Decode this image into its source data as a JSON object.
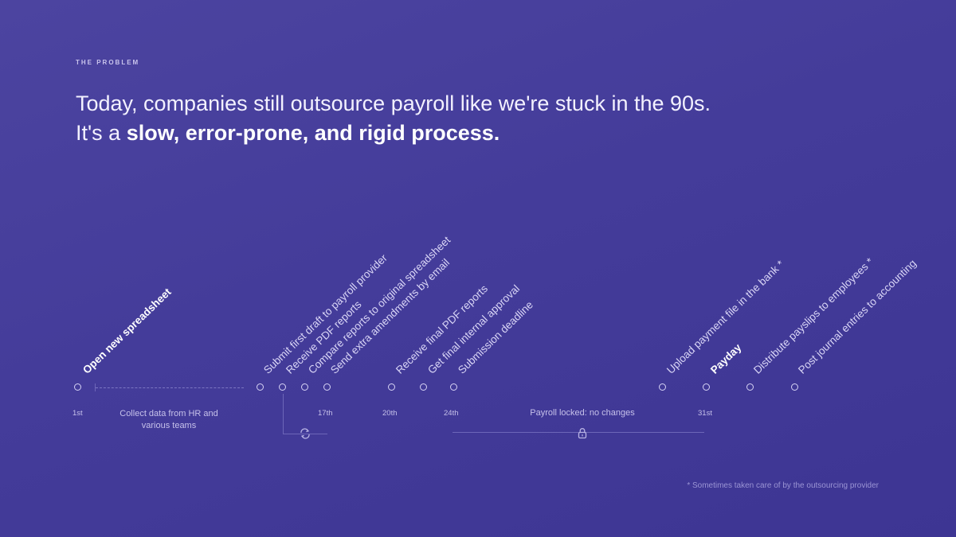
{
  "eyebrow": "THE PROBLEM",
  "headline": {
    "part1": "Today, companies still outsource payroll like we're stuck in the 90s. It's a ",
    "bold": "slow, error-prone, and rigid process."
  },
  "timeline": {
    "steps": {
      "s1": "Open new spreadsheet",
      "s2": "Submit first draft to payroll provider",
      "s3": "Receive PDF reports",
      "s4": "Compare reports to original spreadsheet",
      "s5": "Send extra amendments by email",
      "s6": "Receive final PDF reports",
      "s7": "Get final internal approval",
      "s8": "Submission deadline",
      "s9": "Upload payment file in the bank *",
      "s10": "Payday",
      "s11": "Distribute payslips to employees *",
      "s12": "Post journal entries to accounting"
    },
    "dates": {
      "d1": "1st",
      "d17": "17th",
      "d20": "20th",
      "d24": "24th",
      "d31": "31st"
    },
    "collect_note": "Collect data from HR and various teams",
    "locked_note": "Payroll locked: no changes",
    "icons": {
      "repeat": "repeat-icon",
      "lock": "lock-icon"
    }
  },
  "footnote": "* Sometimes taken care of by the outsourcing provider",
  "colors": {
    "background": "#4540a0",
    "text": "#ffffff",
    "muted": "#c6c1ea"
  }
}
